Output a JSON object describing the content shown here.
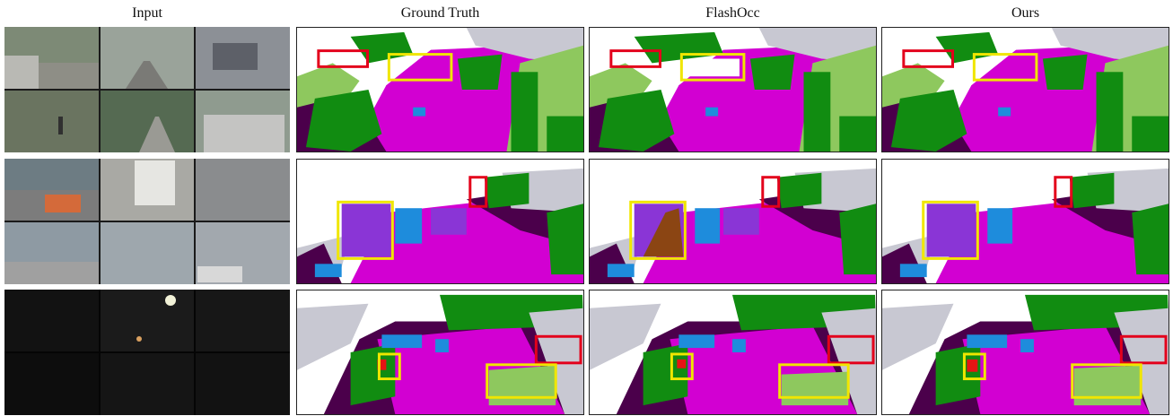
{
  "columns": [
    "Input",
    "Ground Truth",
    "FlashOcc",
    "Ours"
  ],
  "colors": {
    "road": "#d200d2",
    "sidewalk": "#4b004b",
    "vegetation": "#118c11",
    "terrain": "#8ec85e",
    "manmade": "#c8c8d2",
    "car": "#1e8cdc",
    "bus": "#8a35d6",
    "truck": "#8b4513",
    "pedestrian": "#e61414",
    "highlight_red": "#e3001b",
    "highlight_yellow": "#f0e600"
  }
}
